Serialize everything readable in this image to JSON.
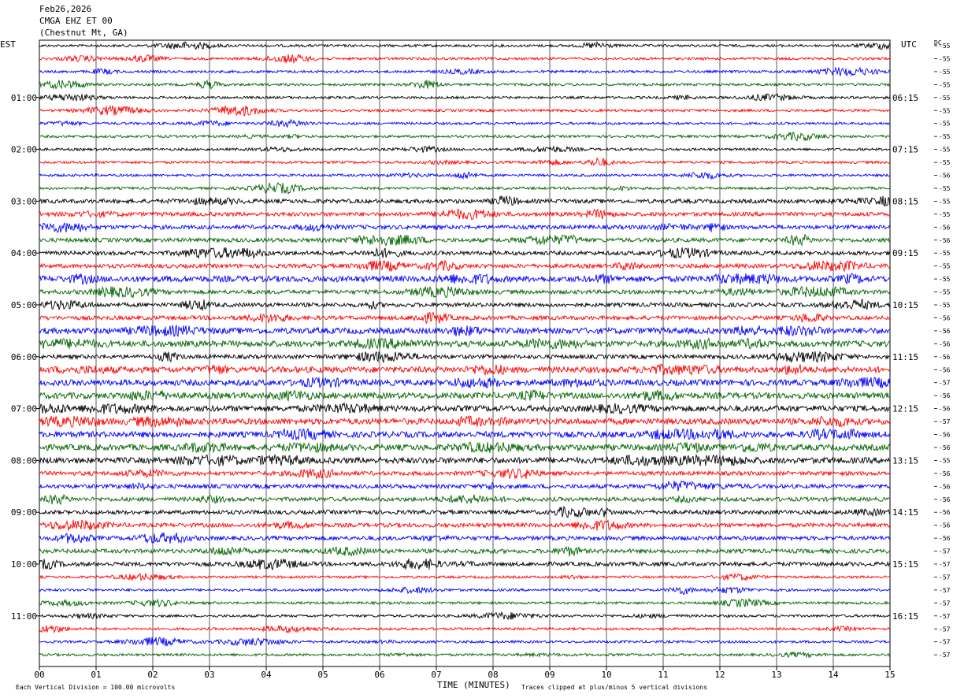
{
  "header": {
    "date": "Feb26,2026",
    "channel": "CMGA EHZ ET 00",
    "location": "(Chestnut Mt, GA)"
  },
  "left_label": "EST",
  "right_label": "UTC",
  "dc_label": "DC",
  "footer": {
    "scale_note": "Each Vertical Division =  100.00 microvolts",
    "xlabel": "TIME (MINUTES)",
    "clip_note": "Traces clipped at plus/minus 5 vertical divisions"
  },
  "colors": {
    "trace_cycle": [
      "#000000",
      "#ff0000",
      "#0000ff",
      "#006400"
    ],
    "grid": "#000000",
    "background": "#ffffff"
  },
  "chart_data": {
    "type": "line",
    "title": "CMGA EHZ ET 00",
    "xlabel": "TIME (MINUTES)",
    "xlim": [
      0,
      15
    ],
    "x_ticks": [
      "00",
      "01",
      "02",
      "03",
      "04",
      "05",
      "06",
      "07",
      "08",
      "09",
      "10",
      "11",
      "12",
      "13",
      "14",
      "15"
    ],
    "rows": 48,
    "minutes_per_row": 15,
    "est_hour_labels": [
      "01:00",
      "02:00",
      "03:00",
      "04:00",
      "05:00",
      "06:00",
      "07:00",
      "08:00",
      "09:00",
      "10:00",
      "11:00"
    ],
    "utc_hour_labels": [
      "06:15",
      "07:15",
      "08:15",
      "09:15",
      "10:15",
      "11:15",
      "12:15",
      "13:15",
      "14:15",
      "15:15",
      "16:15"
    ],
    "dc_offsets": [
      -55,
      -55,
      -55,
      -55,
      -55,
      -55,
      -55,
      -55,
      -55,
      -55,
      -56,
      -55,
      -55,
      -55,
      -56,
      -56,
      -55,
      -55,
      -55,
      -55,
      -55,
      -56,
      -56,
      -56,
      -56,
      -56,
      -57,
      -56,
      -56,
      -57,
      -56,
      -56,
      -55,
      -56,
      -56,
      -56,
      -56,
      -56,
      -56,
      -57,
      -57,
      -57,
      -57,
      -57,
      -57,
      -57,
      -57,
      -57
    ],
    "amplitude_level": [
      1,
      1,
      1,
      1,
      1,
      1,
      1,
      1,
      1,
      1,
      1,
      1,
      2,
      2,
      2,
      2,
      2,
      2,
      3,
      2,
      2,
      2,
      3,
      3,
      2,
      3,
      3,
      3,
      3,
      3,
      3,
      3,
      3,
      2,
      2,
      2,
      2,
      2,
      2,
      2,
      2,
      1,
      1,
      1,
      1,
      1,
      1,
      1
    ]
  }
}
